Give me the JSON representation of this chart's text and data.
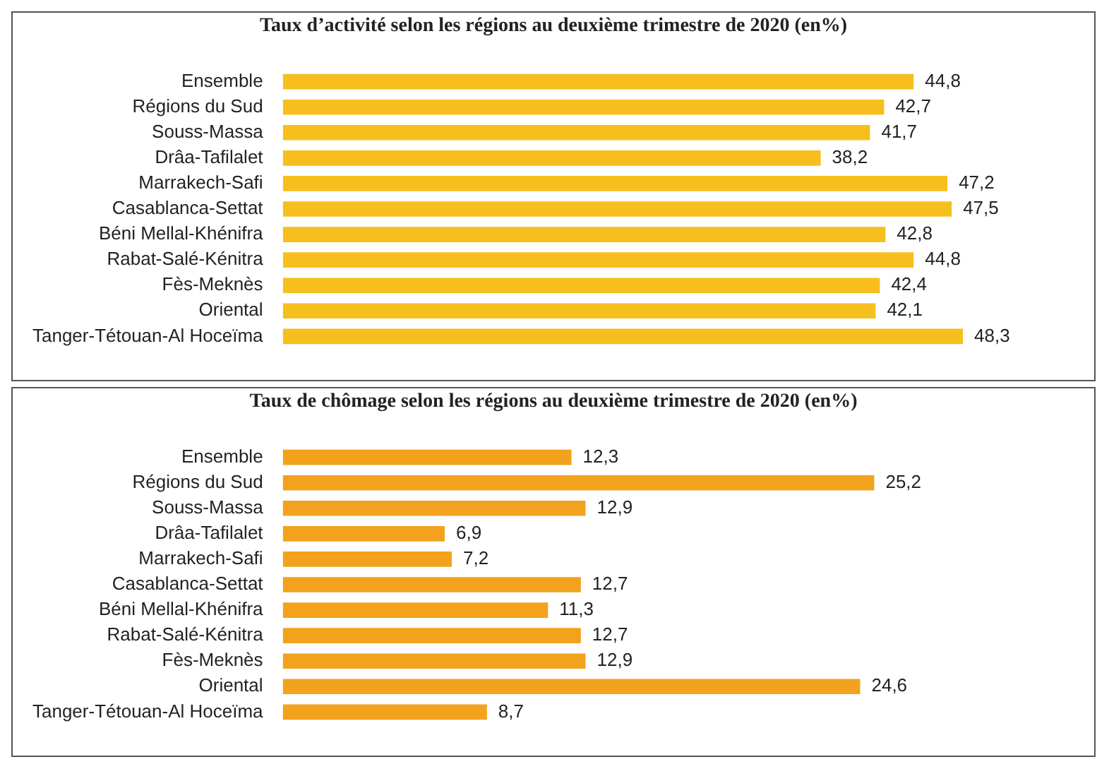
{
  "chart_data": [
    {
      "type": "bar",
      "orientation": "horizontal",
      "title": "Taux d’activité selon les régions au deuxième trimestre de 2020 (en%)",
      "categories": [
        "Ensemble",
        "Régions du Sud",
        "Souss-Massa",
        "Drâa-Tafilalet",
        "Marrakech-Safi",
        "Casablanca-Settat",
        "Béni Mellal-Khénifra",
        "Rabat-Salé-Kénitra",
        "Fès-Meknès",
        "Oriental",
        "Tanger-Tétouan-Al Hoceïma"
      ],
      "values": [
        44.8,
        42.7,
        41.7,
        38.2,
        47.2,
        47.5,
        42.8,
        44.8,
        42.4,
        42.1,
        48.3
      ],
      "value_labels": [
        "44,8",
        "42,7",
        "41,7",
        "38,2",
        "47,2",
        "47,5",
        "42,8",
        "44,8",
        "42,4",
        "42,1",
        "48,3"
      ],
      "color": "#f7bf1e",
      "grid": false,
      "legend": false
    },
    {
      "type": "bar",
      "orientation": "horizontal",
      "title": "Taux de chômage selon les régions au deuxième trimestre de 2020 (en%)",
      "categories": [
        "Ensemble",
        "Régions du Sud",
        "Souss-Massa",
        "Drâa-Tafilalet",
        "Marrakech-Safi",
        "Casablanca-Settat",
        "Béni Mellal-Khénifra",
        "Rabat-Salé-Kénitra",
        "Fès-Meknès",
        "Oriental",
        "Tanger-Tétouan-Al Hoceïma"
      ],
      "values": [
        12.3,
        25.2,
        12.9,
        6.9,
        7.2,
        12.7,
        11.3,
        12.7,
        12.9,
        24.6,
        8.7
      ],
      "value_labels": [
        "12,3",
        "25,2",
        "12,9",
        "6,9",
        "7,2",
        "12,7",
        "11,3",
        "12,7",
        "12,9",
        "24,6",
        "8,7"
      ],
      "color": "#f2a21c",
      "grid": false,
      "legend": false
    }
  ]
}
